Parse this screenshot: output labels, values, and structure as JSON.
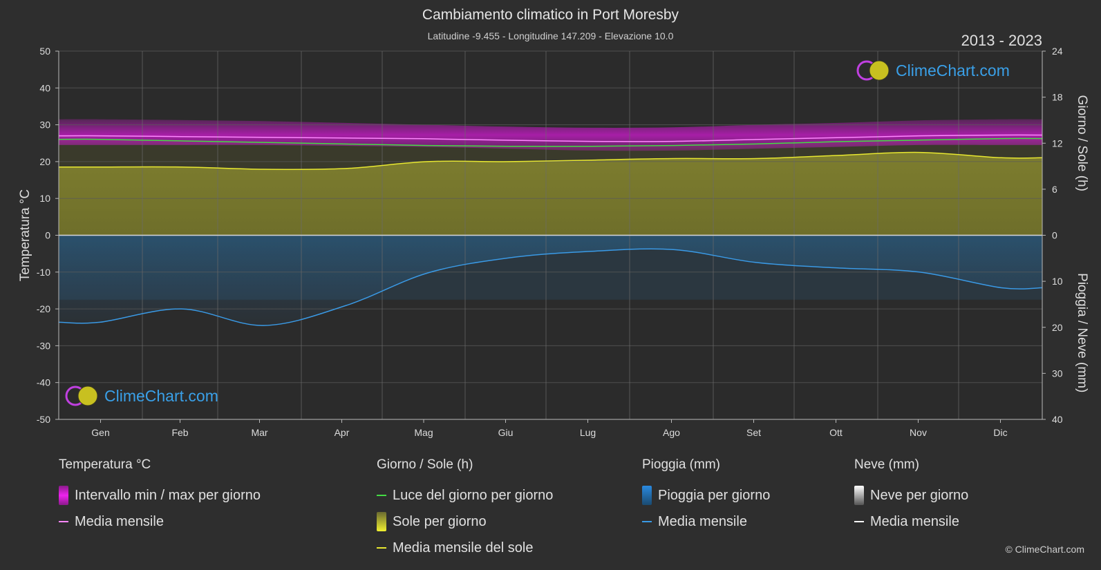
{
  "header": {
    "title": "Cambiamento climatico in Port Moresby",
    "subtitle": "Latitudine -9.455 - Longitudine 147.209 - Elevazione 10.0",
    "years": "2013 - 2023"
  },
  "logo_text": "ClimeChart.com",
  "copyright": "© ClimeChart.com",
  "colors": {
    "background": "#2e2e2e",
    "temp_range": "#d01ad0",
    "temp_mean": "#ff88ff",
    "daylight": "#44dd44",
    "sun_fill": "#b0b030",
    "sun_mean": "#e8e830",
    "rain_fill": "#2a6fa0",
    "rain_mean": "#3a9ae6",
    "snow_mean": "#ffffff"
  },
  "chart_data": {
    "type": "area",
    "x_categories": [
      "Gen",
      "Feb",
      "Mar",
      "Apr",
      "Mag",
      "Giu",
      "Lug",
      "Ago",
      "Set",
      "Ott",
      "Nov",
      "Dic"
    ],
    "y_left": {
      "label": "Temperatura °C",
      "min": -50,
      "max": 50,
      "ticks": [
        50,
        40,
        30,
        20,
        10,
        0,
        -10,
        -20,
        -30,
        -40,
        -50
      ]
    },
    "y_right_top": {
      "label": "Giorno / Sole (h)",
      "min": 0,
      "max": 24,
      "ticks": [
        24,
        18,
        12,
        6,
        0
      ]
    },
    "y_right_bottom": {
      "label": "Pioggia / Neve (mm)",
      "min": 0,
      "max": 40,
      "ticks": [
        0,
        10,
        20,
        30,
        40
      ]
    },
    "grid": true,
    "series": [
      {
        "name": "Intervallo min / max per giorno",
        "axis": "temperature",
        "kind": "band",
        "min": [
          24.5,
          24.5,
          24.5,
          24.3,
          24.0,
          23.5,
          23.0,
          23.0,
          23.5,
          24.0,
          24.5,
          24.5
        ],
        "max": [
          31.5,
          31.3,
          31.0,
          30.5,
          30.0,
          29.5,
          29.2,
          29.3,
          30.0,
          30.5,
          31.2,
          31.5
        ]
      },
      {
        "name": "Media mensile",
        "axis": "temperature",
        "kind": "line",
        "values": [
          27.0,
          26.8,
          26.6,
          26.4,
          26.2,
          25.8,
          25.5,
          25.5,
          26.0,
          26.5,
          27.0,
          27.2
        ]
      },
      {
        "name": "Luce del giorno per giorno",
        "axis": "sun_hours",
        "kind": "line",
        "values": [
          12.5,
          12.3,
          12.1,
          11.9,
          11.7,
          11.6,
          11.6,
          11.7,
          11.9,
          12.2,
          12.4,
          12.6
        ]
      },
      {
        "name": "Sole per giorno",
        "axis": "sun_hours",
        "kind": "area",
        "values": [
          8.9,
          8.9,
          8.6,
          8.7,
          9.6,
          9.6,
          9.8,
          10.0,
          10.0,
          10.4,
          10.8,
          10.1
        ]
      },
      {
        "name": "Media mensile del sole",
        "axis": "sun_hours",
        "kind": "line",
        "values": [
          8.9,
          8.9,
          8.6,
          8.7,
          9.6,
          9.6,
          9.8,
          10.0,
          10.0,
          10.4,
          10.8,
          10.1
        ]
      },
      {
        "name": "Media mensile",
        "axis": "rain_mm",
        "kind": "line",
        "values": [
          18.9,
          16.0,
          19.6,
          15.3,
          8.2,
          4.9,
          3.5,
          3.1,
          5.9,
          7.1,
          8.0,
          11.4
        ]
      }
    ]
  },
  "legend": [
    {
      "heading": "Temperatura °C",
      "items": [
        {
          "label": "Intervallo min / max per giorno",
          "swatch": "block",
          "color": "#d01ad0"
        },
        {
          "label": "Media mensile",
          "swatch": "line",
          "color": "#ff88ff"
        }
      ]
    },
    {
      "heading": "Giorno / Sole (h)",
      "items": [
        {
          "label": "Luce del giorno per giorno",
          "swatch": "line",
          "color": "#44dd44"
        },
        {
          "label": "Sole per giorno",
          "swatch": "block",
          "color": "#c8c83a"
        },
        {
          "label": "Media mensile del sole",
          "swatch": "line",
          "color": "#e8e830"
        }
      ]
    },
    {
      "heading": "Pioggia (mm)",
      "items": [
        {
          "label": "Pioggia per giorno",
          "swatch": "block",
          "color": "#2a7ac0"
        },
        {
          "label": "Media mensile",
          "swatch": "line",
          "color": "#3a9ae6"
        }
      ]
    },
    {
      "heading": "Neve (mm)",
      "items": [
        {
          "label": "Neve per giorno",
          "swatch": "block",
          "color": "#cccccc"
        },
        {
          "label": "Media mensile",
          "swatch": "line",
          "color": "#ffffff"
        }
      ]
    }
  ]
}
